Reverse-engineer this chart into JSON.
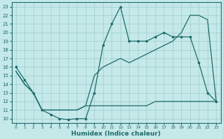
{
  "xlabel": "Humidex (Indice chaleur)",
  "xlim": [
    -0.5,
    23.5
  ],
  "ylim": [
    9.5,
    23.5
  ],
  "xticks": [
    0,
    1,
    2,
    3,
    4,
    5,
    6,
    7,
    8,
    9,
    10,
    11,
    12,
    13,
    14,
    15,
    16,
    17,
    18,
    19,
    20,
    21,
    22,
    23
  ],
  "yticks": [
    10,
    11,
    12,
    13,
    14,
    15,
    16,
    17,
    18,
    19,
    20,
    21,
    22,
    23
  ],
  "bg_color": "#c5e8e8",
  "grid_color": "#9ecece",
  "line_color": "#1e6b6b",
  "line1_x": [
    0,
    1,
    2,
    3,
    4,
    5,
    6,
    7,
    8,
    9,
    10,
    11,
    12,
    13,
    14,
    15,
    16,
    17,
    18,
    19,
    20,
    21,
    22,
    23
  ],
  "line1_y": [
    16,
    14.5,
    13,
    11,
    10.5,
    10,
    9.9,
    10,
    10,
    13,
    18.5,
    21,
    23,
    19,
    19,
    19,
    19.5,
    20,
    19.5,
    19.5,
    19.5,
    16.5,
    13,
    12
  ],
  "line1_markers": true,
  "line2_x": [
    0,
    1,
    2,
    3,
    4,
    5,
    6,
    7,
    8,
    9,
    10,
    11,
    12,
    13,
    14,
    15,
    16,
    17,
    18,
    19,
    20,
    21,
    22,
    23
  ],
  "line2_y": [
    15.5,
    14,
    13,
    11,
    11,
    11,
    11,
    11,
    11.5,
    11.5,
    11.5,
    11.5,
    11.5,
    11.5,
    11.5,
    11.5,
    12,
    12,
    12,
    12,
    12,
    12,
    12,
    12
  ],
  "line2_markers": false,
  "line3_x": [
    0,
    1,
    2,
    3,
    4,
    5,
    6,
    7,
    8,
    9,
    10,
    11,
    12,
    13,
    14,
    15,
    16,
    17,
    18,
    19,
    20,
    21,
    22,
    23
  ],
  "line3_y": [
    15.5,
    14,
    13,
    11,
    11,
    11,
    11,
    11,
    11.5,
    15,
    16,
    16.5,
    17,
    16.5,
    17,
    17.5,
    18,
    18.5,
    19,
    20,
    22,
    22,
    21.5,
    12
  ],
  "line3_markers": false
}
